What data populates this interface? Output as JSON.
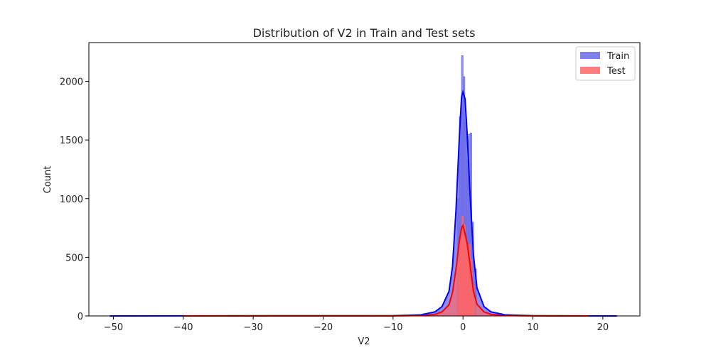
{
  "chart_data": {
    "type": "area",
    "title": "Distribution of V2 in Train and Test sets",
    "xlabel": "V2",
    "ylabel": "Count",
    "xlim": [
      -53.5,
      25.3
    ],
    "ylim": [
      0,
      2330
    ],
    "xticks": [
      -50,
      -40,
      -30,
      -20,
      -10,
      0,
      10,
      20
    ],
    "yticks": [
      0,
      500,
      1000,
      1500,
      2000
    ],
    "grid": false,
    "legend_placement": "top-right",
    "series": [
      {
        "name": "Train",
        "fill_color": "#6a6ae8",
        "line_color": "#0000ff",
        "kde": [
          [
            -50.5,
            0
          ],
          [
            -10,
            2
          ],
          [
            -6,
            10
          ],
          [
            -4,
            35
          ],
          [
            -3,
            80
          ],
          [
            -2,
            210
          ],
          [
            -1.5,
            420
          ],
          [
            -1,
            900
          ],
          [
            -0.5,
            1550
          ],
          [
            -0.2,
            1870
          ],
          [
            0,
            1910
          ],
          [
            0.3,
            1850
          ],
          [
            0.6,
            1550
          ],
          [
            1,
            1050
          ],
          [
            1.5,
            520
          ],
          [
            2,
            240
          ],
          [
            3,
            80
          ],
          [
            4,
            35
          ],
          [
            6,
            10
          ],
          [
            10,
            2
          ],
          [
            22,
            0
          ]
        ],
        "hist": [
          [
            -0.7,
            1000
          ],
          [
            -0.4,
            1700
          ],
          [
            -0.1,
            2220
          ],
          [
            0.15,
            2040
          ],
          [
            0.4,
            1650
          ],
          [
            0.65,
            1330
          ],
          [
            0.9,
            1550
          ],
          [
            1.15,
            1560
          ],
          [
            1.4,
            800
          ],
          [
            1.8,
            400
          ]
        ]
      },
      {
        "name": "Test",
        "fill_color": "#ff6666",
        "line_color": "#ff0000",
        "kde": [
          [
            -40,
            0
          ],
          [
            -10,
            1
          ],
          [
            -6,
            4
          ],
          [
            -4,
            14
          ],
          [
            -3,
            35
          ],
          [
            -2,
            95
          ],
          [
            -1.5,
            200
          ],
          [
            -1,
            400
          ],
          [
            -0.5,
            650
          ],
          [
            -0.2,
            750
          ],
          [
            0,
            770
          ],
          [
            0.3,
            700
          ],
          [
            0.6,
            620
          ],
          [
            1,
            440
          ],
          [
            1.5,
            210
          ],
          [
            2,
            100
          ],
          [
            3,
            35
          ],
          [
            4,
            14
          ],
          [
            6,
            4
          ],
          [
            10,
            1
          ],
          [
            18,
            0
          ]
        ],
        "hist": [
          [
            -0.6,
            450
          ],
          [
            -0.3,
            700
          ],
          [
            -0.05,
            850
          ],
          [
            0.2,
            780
          ],
          [
            0.45,
            640
          ],
          [
            0.7,
            570
          ],
          [
            0.95,
            610
          ],
          [
            1.2,
            480
          ],
          [
            1.5,
            260
          ]
        ]
      }
    ]
  }
}
